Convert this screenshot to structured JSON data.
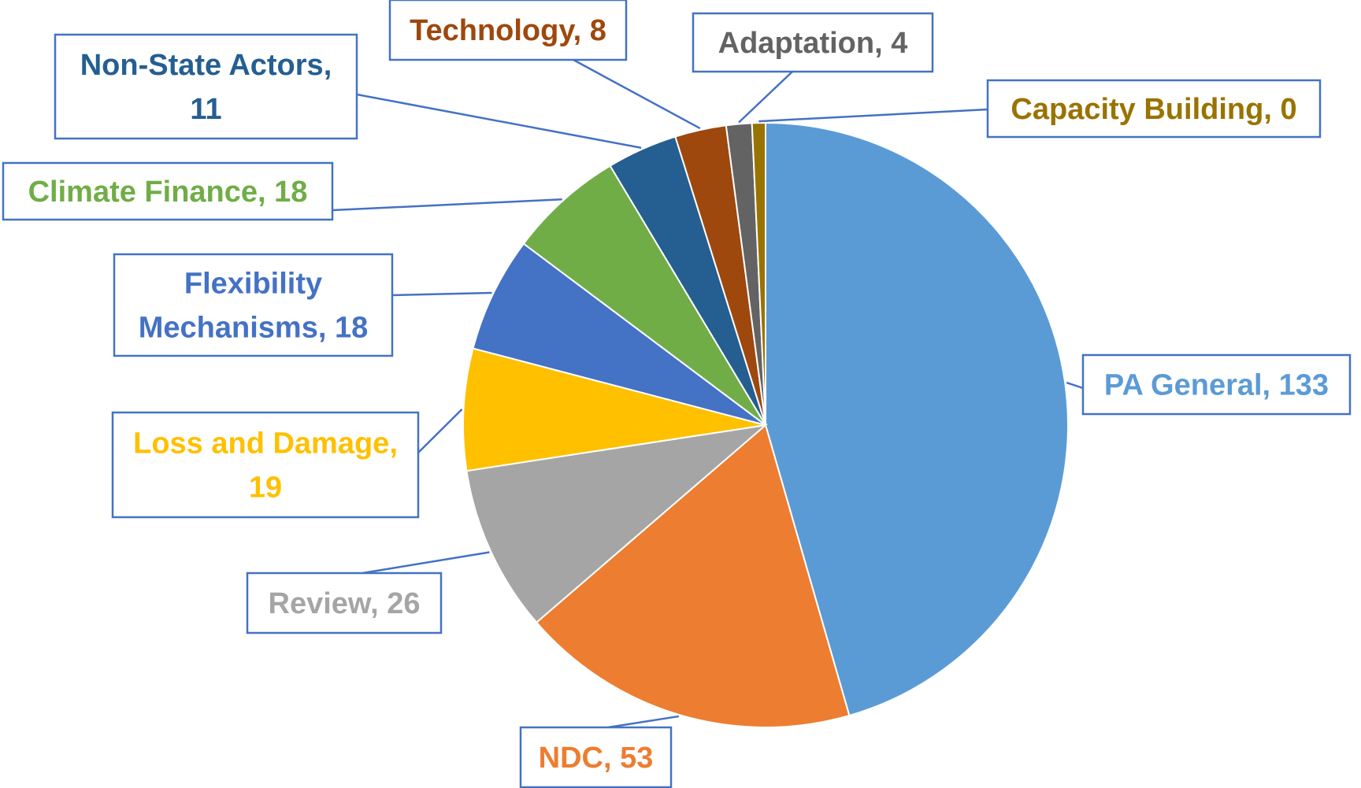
{
  "chart_data": {
    "type": "pie",
    "title": "",
    "start_angle_deg": 0,
    "direction": "clockwise",
    "slices": [
      {
        "label": "PA General",
        "value": 133,
        "color": "#5B9BD5",
        "label_color": "#5B9BD5",
        "data_label": "PA General, 133"
      },
      {
        "label": "NDC",
        "value": 53,
        "color": "#ED7D31",
        "label_color": "#ED7D31",
        "data_label": "NDC, 53"
      },
      {
        "label": "Review",
        "value": 26,
        "color": "#A5A5A5",
        "label_color": "#A5A5A5",
        "data_label": "Review, 26"
      },
      {
        "label": "Loss and Damage",
        "value": 19,
        "color": "#FFC000",
        "label_color": "#FFC000",
        "data_label": "Loss and Damage, 19"
      },
      {
        "label": "Flexibility Mechanisms",
        "value": 18,
        "color": "#4472C4",
        "label_color": "#4472C4",
        "data_label": "Flexibility Mechanisms, 18"
      },
      {
        "label": "Climate Finance",
        "value": 18,
        "color": "#70AD47",
        "label_color": "#70AD47",
        "data_label": "Climate Finance, 18"
      },
      {
        "label": "Non-State Actors",
        "value": 11,
        "color": "#255E91",
        "label_color": "#255E91",
        "data_label": "Non-State Actors, 11"
      },
      {
        "label": "Technology",
        "value": 8,
        "color": "#9E480E",
        "label_color": "#9E480E",
        "data_label": "Technology, 8"
      },
      {
        "label": "Adaptation",
        "value": 4,
        "color": "#636363",
        "label_color": "#636363",
        "data_label": "Adaptation, 4"
      },
      {
        "label": "Capacity Building",
        "value": 0,
        "color": "#997300",
        "label_color": "#997300",
        "data_label": "Capacity Building, 0"
      }
    ],
    "callout_border_color": "#4472C4",
    "legend": "none"
  }
}
